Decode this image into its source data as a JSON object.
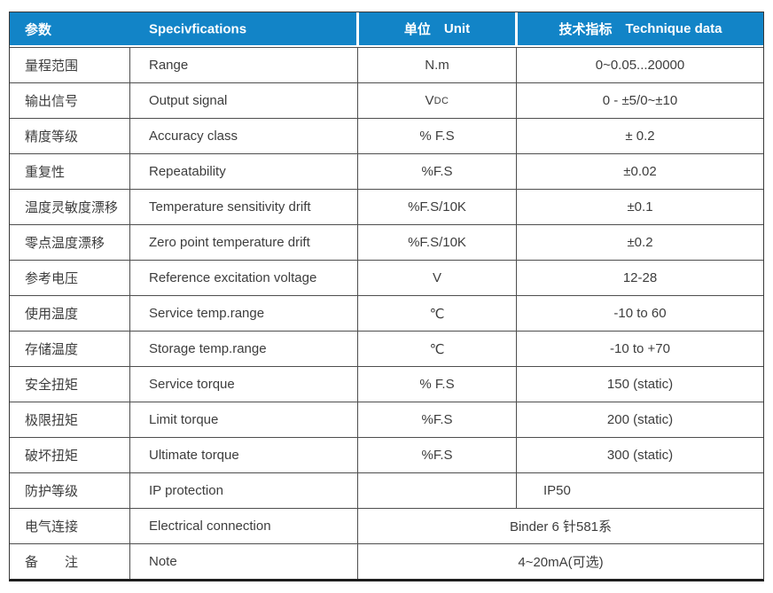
{
  "colors": {
    "header_blue": "#1284c7",
    "header_text": "#ffffff",
    "body_text": "#3d3d3d",
    "grid_line": "#4e4e4e",
    "outer_border": "#383838",
    "bottom_rule": "#1e1e1e"
  },
  "table": {
    "header": {
      "param_zh": "参数",
      "spec_en": "Specivfications",
      "unit_zh": "单位",
      "unit_en": "Unit",
      "tech_zh": "技术指标",
      "tech_en": "Technique data"
    },
    "rows": [
      {
        "zh": "量程范围",
        "en": "Range",
        "unit": "N.m",
        "value": "0~0.05...20000"
      },
      {
        "zh": "输出信号",
        "en": "Output signal",
        "unit_base": "V",
        "unit_sub": "DC",
        "value": "0 - ±5/0~±10"
      },
      {
        "zh": "精度等级",
        "en": "Accuracy class",
        "unit": "% F.S",
        "value": "± 0.2"
      },
      {
        "zh": "重复性",
        "en": "Repeatability",
        "unit": "%F.S",
        "value": "±0.02"
      },
      {
        "zh": "温度灵敏度漂移",
        "en": "Temperature sensitivity drift",
        "unit": "%F.S/10K",
        "value": "±0.1"
      },
      {
        "zh": "零点温度漂移",
        "en": "Zero point temperature drift",
        "unit": "%F.S/10K",
        "value": "±0.2"
      },
      {
        "zh": "参考电压",
        "en": "Reference excitation voltage",
        "unit": "V",
        "value": "12-28"
      },
      {
        "zh": "使用温度",
        "en": "Service temp.range",
        "unit": "℃",
        "value": "-10 to 60"
      },
      {
        "zh": "存储温度",
        "en": "Storage temp.range",
        "unit": "℃",
        "value": "-10 to +70"
      },
      {
        "zh": "安全扭矩",
        "en": "Service torque",
        "unit": "% F.S",
        "value": "150 (static)"
      },
      {
        "zh": "极限扭矩",
        "en": "Limit torque",
        "unit": "%F.S",
        "value": "200 (static)"
      },
      {
        "zh": "破坏扭矩",
        "en": "Ultimate torque",
        "unit": "%F.S",
        "value": "300 (static)"
      },
      {
        "zh": "防护等级",
        "en": "IP protection",
        "unit": "",
        "value": "IP50",
        "value_align": "left"
      },
      {
        "zh": "电气连接",
        "en": "Electrical connection",
        "merged": true,
        "value": "Binder 6 针581系"
      },
      {
        "zh": "备　　注",
        "en": "Note",
        "merged": true,
        "value": "4~20mA(可选)"
      }
    ]
  }
}
